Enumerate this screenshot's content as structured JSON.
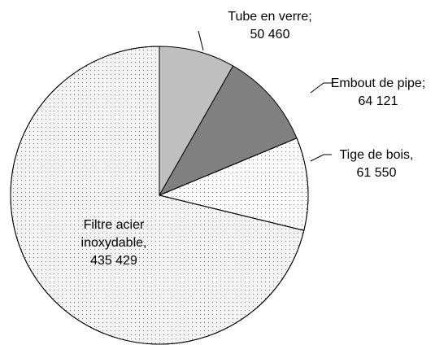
{
  "chart_data": {
    "type": "pie",
    "categories": [
      "Tube en verre;",
      "Embout de pipe;",
      "Tige de bois,",
      "Filtre acier inoxydable,"
    ],
    "values": [
      50460,
      64121,
      61550,
      435429
    ],
    "value_labels": [
      "50 460",
      "64 121",
      "61 550",
      "435 429"
    ],
    "colors": [
      "#bfbfbf",
      "#808080",
      "#ffffff",
      "#f4f4f4"
    ],
    "patterns": [
      "solid",
      "solid",
      "dots",
      "dots"
    ]
  }
}
